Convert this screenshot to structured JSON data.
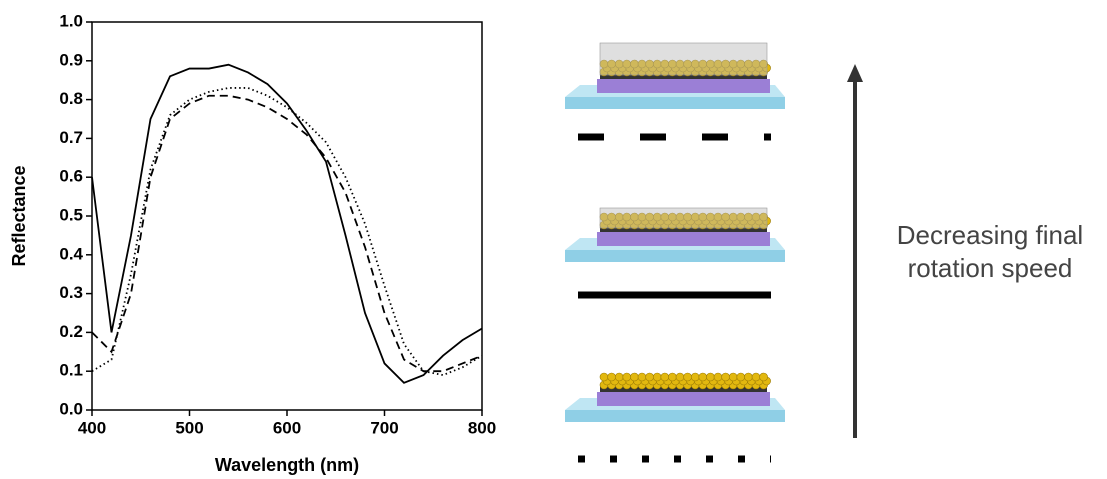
{
  "chart_data": {
    "type": "line",
    "xlabel": "Wavelength (nm)",
    "ylabel": "Reflectance",
    "x": [
      400,
      420,
      440,
      460,
      480,
      500,
      520,
      540,
      560,
      580,
      600,
      620,
      640,
      660,
      680,
      700,
      720,
      740,
      760,
      780,
      800
    ],
    "series": [
      {
        "color": "#000000",
        "dash": "solid",
        "values": [
          0.6,
          0.2,
          0.45,
          0.75,
          0.86,
          0.88,
          0.88,
          0.89,
          0.87,
          0.84,
          0.79,
          0.72,
          0.64,
          0.45,
          0.25,
          0.12,
          0.07,
          0.09,
          0.14,
          0.18,
          0.21
        ]
      },
      {
        "color": "#000000",
        "dash": "dashed",
        "values": [
          0.2,
          0.15,
          0.3,
          0.6,
          0.75,
          0.79,
          0.81,
          0.81,
          0.8,
          0.78,
          0.75,
          0.71,
          0.65,
          0.56,
          0.42,
          0.25,
          0.13,
          0.1,
          0.1,
          0.12,
          0.14
        ]
      },
      {
        "color": "#000000",
        "dash": "dotted",
        "values": [
          0.1,
          0.13,
          0.35,
          0.62,
          0.76,
          0.8,
          0.82,
          0.83,
          0.83,
          0.81,
          0.78,
          0.74,
          0.69,
          0.6,
          0.48,
          0.32,
          0.17,
          0.1,
          0.09,
          0.11,
          0.14
        ]
      }
    ],
    "xlim": [
      400,
      800
    ],
    "xticks": [
      400,
      500,
      600,
      700,
      800
    ],
    "ylim": [
      0,
      1
    ],
    "yticks": [
      {
        "value": 0,
        "label": "0.0"
      },
      0.1,
      0.2,
      0.3,
      0.4,
      0.5,
      0.6,
      0.7,
      0.8,
      0.9,
      {
        "value": 1,
        "label": "1.0"
      }
    ],
    "legend_order": [
      1,
      0,
      2
    ],
    "annotation": [
      "Decreasing final",
      "rotation speed"
    ]
  }
}
